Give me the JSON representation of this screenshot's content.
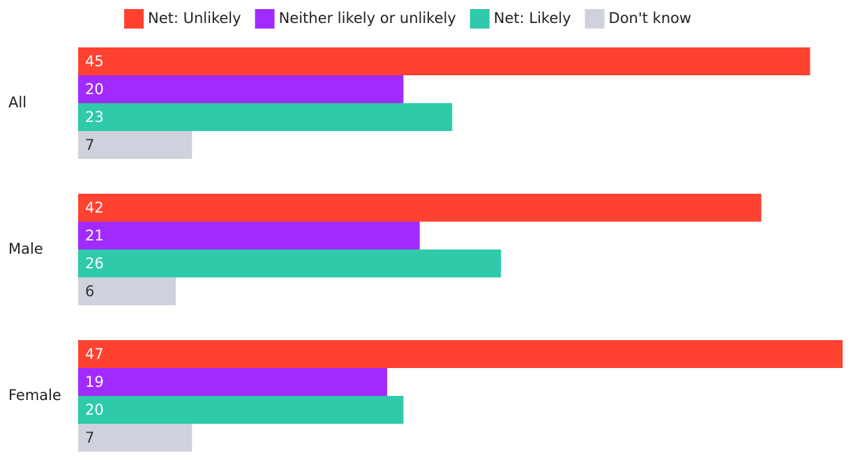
{
  "chart_data": {
    "type": "bar",
    "orientation": "horizontal",
    "categories": [
      "All",
      "Male",
      "Female"
    ],
    "series": [
      {
        "name": "Net: Unlikely",
        "color": "#ff4130",
        "values": [
          45,
          42,
          47
        ]
      },
      {
        "name": "Neither likely or unlikely",
        "color": "#a12bff",
        "values": [
          20,
          21,
          19
        ]
      },
      {
        "name": "Net: Likely",
        "color": "#2ecaa9",
        "values": [
          23,
          26,
          20
        ]
      },
      {
        "name": "Don't know",
        "color": "#cfd2dc",
        "values": [
          7,
          6,
          7
        ]
      }
    ],
    "legend": "top",
    "data_labels": true
  }
}
